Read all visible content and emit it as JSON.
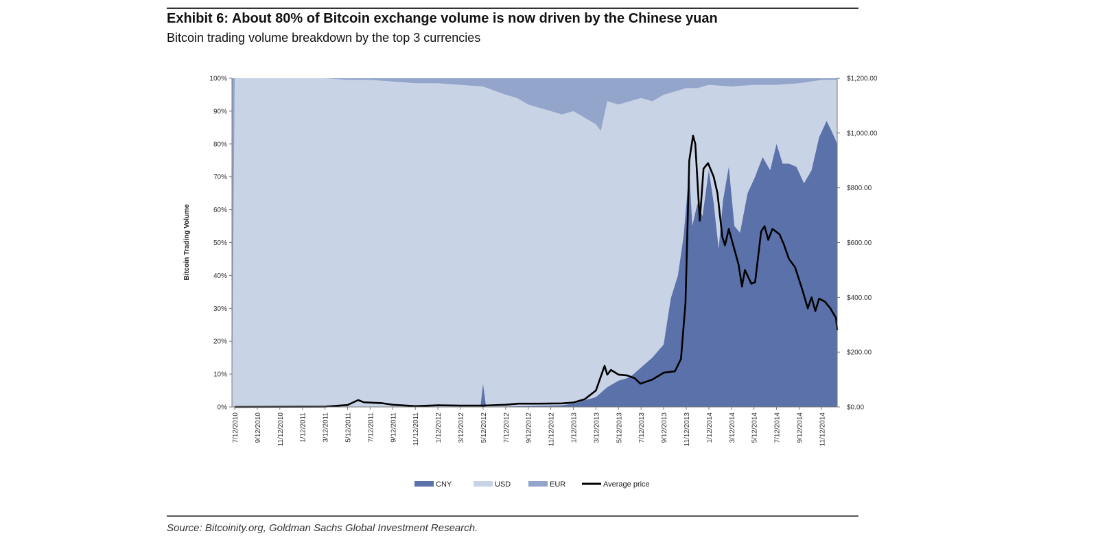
{
  "title": "Exhibit 6: About 80% of Bitcoin exchange volume is now driven by the Chinese yuan",
  "subtitle": "Bitcoin trading volume breakdown by the top 3 currencies",
  "source": "Source: Bitcoinity.org, Goldman Sachs Global Investment Research.",
  "chart_data": {
    "type": "area",
    "stacked": true,
    "ylabel": "Bitcoin  Trading Volume",
    "ylim": [
      0,
      100
    ],
    "y2lim": [
      0,
      1200
    ],
    "yticks": [
      "0%",
      "10%",
      "20%",
      "30%",
      "40%",
      "50%",
      "60%",
      "70%",
      "80%",
      "90%",
      "100%"
    ],
    "y2ticks": [
      "$0.00",
      "$200.00",
      "$400.00",
      "$600.00",
      "$800.00",
      "$1,000.00",
      "$1,200.00"
    ],
    "xticks": [
      "7/12/2010",
      "9/12/2010",
      "11/12/2010",
      "1/12/2011",
      "3/12/2011",
      "5/12/2011",
      "7/12/2011",
      "9/12/2011",
      "11/12/2011",
      "1/12/2012",
      "3/12/2012",
      "5/12/2012",
      "7/12/2012",
      "9/12/2012",
      "11/12/2012",
      "1/12/2013",
      "3/12/2013",
      "5/12/2013",
      "7/12/2013",
      "9/12/2013",
      "11/12/2013",
      "1/12/2014",
      "3/12/2014",
      "5/12/2014",
      "7/12/2014",
      "9/12/2014",
      "11/12/2014"
    ],
    "grid": false,
    "legend_position": "bottom",
    "colors": {
      "CNY": "#5a71a9",
      "USD": "#c9d3e6",
      "EUR": "#93a5cb",
      "Average price": "#000000"
    },
    "series": [
      {
        "name": "CNY",
        "axis": "left",
        "points": [
          [
            "2010-07-12",
            0
          ],
          [
            "2012-01-12",
            0
          ],
          [
            "2012-05-05",
            0
          ],
          [
            "2012-05-12",
            7
          ],
          [
            "2012-05-20",
            0
          ],
          [
            "2012-12-12",
            0.5
          ],
          [
            "2013-01-12",
            1
          ],
          [
            "2013-02-12",
            2
          ],
          [
            "2013-03-12",
            3
          ],
          [
            "2013-04-12",
            6
          ],
          [
            "2013-05-12",
            8
          ],
          [
            "2013-06-12",
            9
          ],
          [
            "2013-07-12",
            12
          ],
          [
            "2013-08-12",
            15
          ],
          [
            "2013-09-12",
            19
          ],
          [
            "2013-10-01",
            33
          ],
          [
            "2013-10-20",
            40
          ],
          [
            "2013-11-05",
            52
          ],
          [
            "2013-11-20",
            72
          ],
          [
            "2013-11-28",
            55
          ],
          [
            "2013-12-12",
            62
          ],
          [
            "2013-12-25",
            58
          ],
          [
            "2014-01-12",
            72
          ],
          [
            "2014-01-25",
            62
          ],
          [
            "2014-02-08",
            48
          ],
          [
            "2014-02-20",
            63
          ],
          [
            "2014-03-05",
            73
          ],
          [
            "2014-03-20",
            55
          ],
          [
            "2014-04-05",
            53
          ],
          [
            "2014-04-25",
            65
          ],
          [
            "2014-05-15",
            70
          ],
          [
            "2014-06-05",
            76
          ],
          [
            "2014-06-25",
            72
          ],
          [
            "2014-07-12",
            80
          ],
          [
            "2014-07-28",
            74
          ],
          [
            "2014-08-15",
            74
          ],
          [
            "2014-09-05",
            73
          ],
          [
            "2014-09-25",
            68
          ],
          [
            "2014-10-15",
            72
          ],
          [
            "2014-11-05",
            82
          ],
          [
            "2014-11-25",
            87
          ],
          [
            "2014-12-12",
            83
          ],
          [
            "2014-12-26",
            80
          ]
        ]
      },
      {
        "name": "USD",
        "axis": "left",
        "points": [
          [
            "2010-07-12",
            100
          ],
          [
            "2011-03-12",
            100
          ],
          [
            "2011-05-12",
            99.5
          ],
          [
            "2011-07-12",
            99.5
          ],
          [
            "2011-09-12",
            99
          ],
          [
            "2011-11-12",
            98.5
          ],
          [
            "2012-01-12",
            98.5
          ],
          [
            "2012-03-12",
            98
          ],
          [
            "2012-05-12",
            97.5
          ],
          [
            "2012-07-12",
            95
          ],
          [
            "2012-08-12",
            94
          ],
          [
            "2012-09-12",
            92
          ],
          [
            "2012-10-12",
            91
          ],
          [
            "2012-11-12",
            90
          ],
          [
            "2012-12-12",
            89
          ],
          [
            "2013-01-12",
            90
          ],
          [
            "2013-02-12",
            88
          ],
          [
            "2013-03-12",
            86
          ],
          [
            "2013-03-25",
            84
          ],
          [
            "2013-04-12",
            93
          ],
          [
            "2013-05-12",
            92
          ],
          [
            "2013-06-12",
            93
          ],
          [
            "2013-07-12",
            94
          ],
          [
            "2013-08-12",
            93
          ],
          [
            "2013-09-12",
            95
          ],
          [
            "2013-10-12",
            96
          ],
          [
            "2013-11-12",
            97
          ],
          [
            "2013-12-12",
            97
          ],
          [
            "2014-01-12",
            98
          ],
          [
            "2014-03-12",
            97.5
          ],
          [
            "2014-05-12",
            98
          ],
          [
            "2014-07-12",
            98
          ],
          [
            "2014-09-12",
            98.5
          ],
          [
            "2014-11-12",
            99.5
          ],
          [
            "2014-12-26",
            99.5
          ]
        ]
      },
      {
        "name": "EUR",
        "axis": "left",
        "fills_to": 100
      },
      {
        "name": "Average price",
        "axis": "right",
        "points": [
          [
            "2010-07-12",
            0.1
          ],
          [
            "2011-03-12",
            0.9
          ],
          [
            "2011-05-12",
            7
          ],
          [
            "2011-06-10",
            25
          ],
          [
            "2011-06-25",
            17
          ],
          [
            "2011-08-12",
            14
          ],
          [
            "2011-09-12",
            8
          ],
          [
            "2011-11-12",
            3
          ],
          [
            "2012-01-12",
            6
          ],
          [
            "2012-03-12",
            5
          ],
          [
            "2012-05-12",
            5
          ],
          [
            "2012-07-12",
            8
          ],
          [
            "2012-08-15",
            12
          ],
          [
            "2012-10-12",
            12
          ],
          [
            "2012-12-12",
            13
          ],
          [
            "2013-01-12",
            16
          ],
          [
            "2013-02-12",
            28
          ],
          [
            "2013-03-12",
            60
          ],
          [
            "2013-04-05",
            150
          ],
          [
            "2013-04-12",
            118
          ],
          [
            "2013-04-22",
            135
          ],
          [
            "2013-05-12",
            118
          ],
          [
            "2013-06-05",
            115
          ],
          [
            "2013-06-25",
            105
          ],
          [
            "2013-07-10",
            85
          ],
          [
            "2013-08-12",
            100
          ],
          [
            "2013-09-12",
            125
          ],
          [
            "2013-10-12",
            130
          ],
          [
            "2013-10-28",
            175
          ],
          [
            "2013-11-10",
            380
          ],
          [
            "2013-11-20",
            900
          ],
          [
            "2013-11-30",
            990
          ],
          [
            "2013-12-06",
            960
          ],
          [
            "2013-12-18",
            680
          ],
          [
            "2013-12-28",
            870
          ],
          [
            "2014-01-10",
            890
          ],
          [
            "2014-01-25",
            840
          ],
          [
            "2014-02-05",
            780
          ],
          [
            "2014-02-18",
            620
          ],
          [
            "2014-02-25",
            590
          ],
          [
            "2014-03-05",
            650
          ],
          [
            "2014-03-15",
            600
          ],
          [
            "2014-04-01",
            520
          ],
          [
            "2014-04-10",
            440
          ],
          [
            "2014-04-18",
            500
          ],
          [
            "2014-05-05",
            450
          ],
          [
            "2014-05-15",
            455
          ],
          [
            "2014-06-01",
            640
          ],
          [
            "2014-06-10",
            660
          ],
          [
            "2014-06-20",
            610
          ],
          [
            "2014-07-01",
            650
          ],
          [
            "2014-07-20",
            630
          ],
          [
            "2014-08-01",
            595
          ],
          [
            "2014-08-15",
            540
          ],
          [
            "2014-09-01",
            510
          ],
          [
            "2014-09-20",
            430
          ],
          [
            "2014-10-05",
            360
          ],
          [
            "2014-10-15",
            400
          ],
          [
            "2014-10-25",
            350
          ],
          [
            "2014-11-05",
            395
          ],
          [
            "2014-11-20",
            385
          ],
          [
            "2014-12-05",
            360
          ],
          [
            "2014-12-20",
            325
          ],
          [
            "2014-12-26",
            280
          ]
        ]
      }
    ]
  }
}
